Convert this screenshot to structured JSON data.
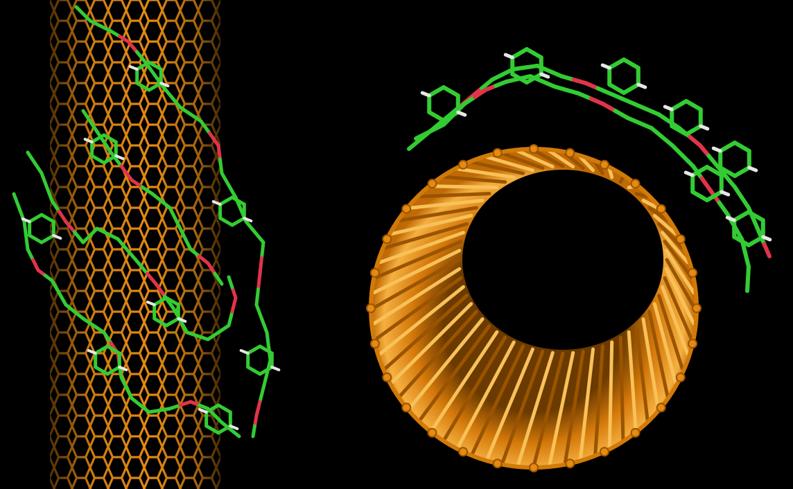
{
  "colors": {
    "background": "#000000",
    "nanotube_orange": "#e58a12",
    "nanotube_dark": "#9a5400",
    "nanotube_light": "#f8c15a",
    "molecule_carbon": "#33cc33",
    "molecule_oxygen": "#e0344a",
    "molecule_hydrogen": "#e6e6e6"
  },
  "panels": [
    {
      "name": "side-view-nanotube",
      "depicts": "nanotube-side-view"
    },
    {
      "name": "end-on-nanotube",
      "depicts": "nanotube-end-view"
    }
  ]
}
